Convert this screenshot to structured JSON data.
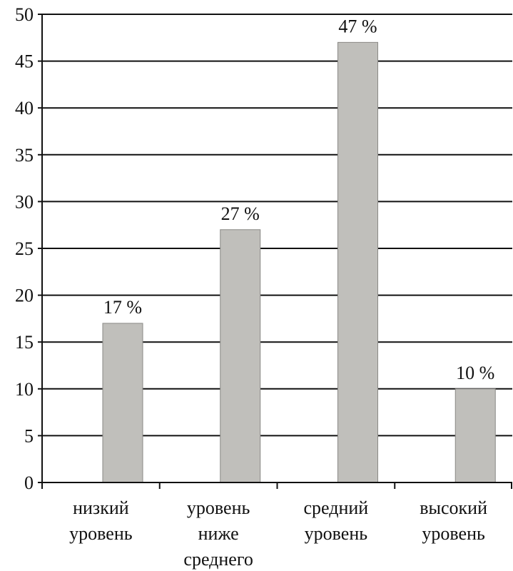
{
  "chart_data": {
    "type": "bar",
    "categories": [
      [
        "низкий",
        "уровень"
      ],
      [
        "уровень",
        "ниже",
        "среднего"
      ],
      [
        "средний",
        "уровень"
      ],
      [
        "высокий",
        "уровень"
      ]
    ],
    "values": [
      17,
      27,
      47,
      10
    ],
    "data_labels": [
      "17 %",
      "27 %",
      "47 %",
      "10 %"
    ],
    "ylim": [
      0,
      50
    ],
    "yticks": [
      0,
      5,
      10,
      15,
      20,
      25,
      30,
      35,
      40,
      45,
      50
    ],
    "grid": true,
    "bar_color": "#c0bfbb",
    "bar_edge_color": "#8a8986",
    "title": "",
    "xlabel": "",
    "ylabel": ""
  }
}
